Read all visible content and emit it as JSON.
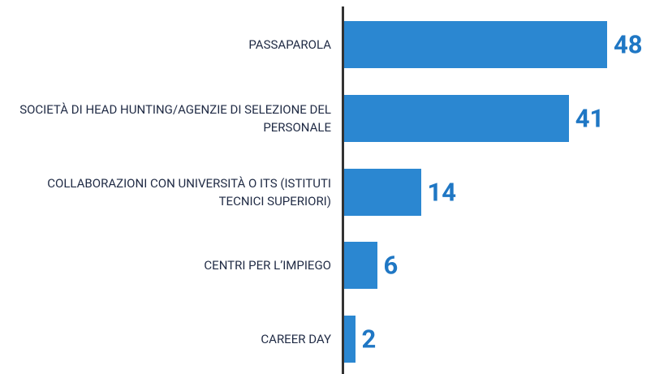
{
  "chart_data": {
    "type": "hbar",
    "categories": [
      "PASSAPAROLA",
      "SOCIETÀ DI HEAD HUNTING/AGENZIE DI SELEZIONE DEL PERSONALE",
      "COLLABORAZIONI CON UNIVERSITÀ O ITS (ISTITUTI TECNICI SUPERIORI)",
      "CENTRI PER L’IMPIEGO",
      "CAREER DAY"
    ],
    "values": [
      48,
      41,
      14,
      6,
      2
    ],
    "color": "#2b87d1",
    "label_color": "#1f77c4"
  }
}
